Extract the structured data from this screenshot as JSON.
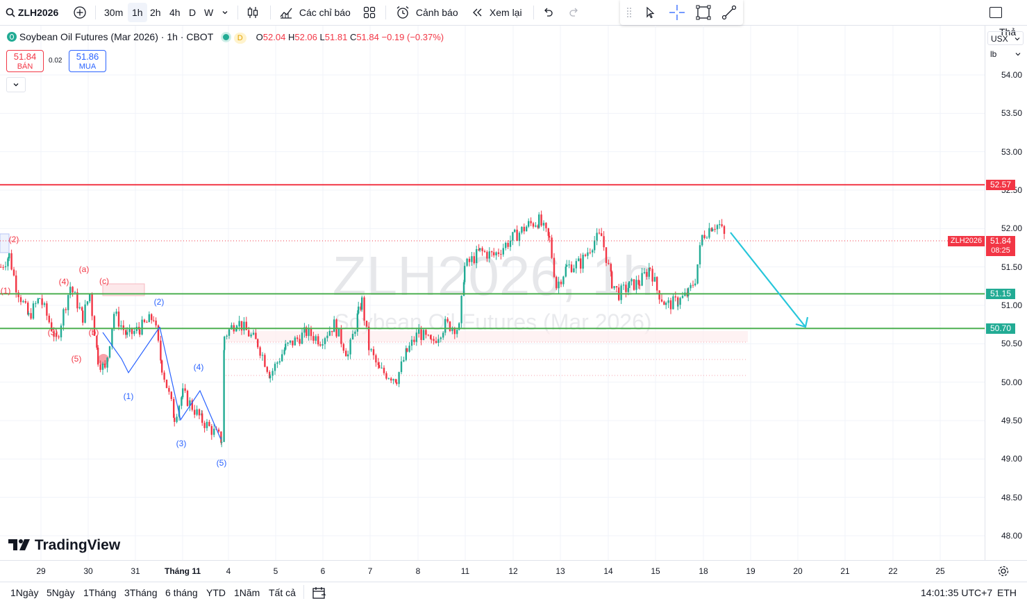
{
  "toolbar": {
    "symbol": "ZLH2026",
    "intervals": [
      "30m",
      "1h",
      "2h",
      "4h",
      "D",
      "W"
    ],
    "selected_interval": "1h",
    "indicators_label": "Các chỉ báo",
    "alerts_label": "Cảnh báo",
    "replay_label": "Xem lại",
    "right_label": "Thả"
  },
  "legend": {
    "title": "Soybean Oil Futures (Mar 2026)",
    "interval": "1h",
    "exchange": "CBOT",
    "flag": "D",
    "open_label": "O",
    "open": "52.04",
    "high_label": "H",
    "high": "52.06",
    "low_label": "L",
    "low": "51.81",
    "close_label": "C",
    "close": "51.84",
    "change": "−0.19 (−0.37%)"
  },
  "trade": {
    "sell_price": "51.84",
    "sell_label": "BÁN",
    "spread": "0.02",
    "buy_price": "51.86",
    "buy_label": "MUA"
  },
  "watermark": {
    "symbol": "ZLH2026, 1h",
    "name": "Soybean Oil Futures (Mar 2026)"
  },
  "price_axis": {
    "currency": "USX",
    "unit": "lb",
    "ticks": [
      "54.00",
      "53.50",
      "53.00",
      "52.50",
      "52.00",
      "51.50",
      "51.00",
      "50.50",
      "50.00",
      "49.50",
      "49.00",
      "48.50",
      "48.00"
    ],
    "level_tags": [
      {
        "value": "52.57",
        "color": "#f23645"
      },
      {
        "value": "51.15",
        "color": "#22ab94"
      },
      {
        "value": "50.70",
        "color": "#22ab94"
      }
    ],
    "current_symbol": "ZLH2026",
    "current_price": "51.84",
    "countdown": "08:25"
  },
  "time_axis": {
    "labels": [
      "29",
      "30",
      "31",
      "Tháng 11",
      "4",
      "5",
      "6",
      "7",
      "8",
      "11",
      "12",
      "13",
      "14",
      "15",
      "18",
      "19",
      "20",
      "21",
      "22",
      "25"
    ]
  },
  "bottom": {
    "ranges": [
      "1Ngày",
      "5Ngày",
      "1Tháng",
      "3Tháng",
      "6 tháng",
      "YTD",
      "1Năm",
      "Tất cả"
    ],
    "clock": "14:01:35 UTC+7",
    "session": "ETH"
  },
  "logo_text": "TradingView",
  "colors": {
    "up": "#22ab94",
    "down": "#f23645",
    "resistance": "#f23645",
    "support": "#4caf50",
    "arrow": "#26c6da",
    "wave_red": "#f23645",
    "wave_blue": "#2962ff"
  },
  "chart_data": {
    "type": "candlestick",
    "symbol": "ZLH2026",
    "interval": "1h",
    "ylim": [
      47.8,
      54.25
    ],
    "x_labels": [
      "29",
      "30",
      "31",
      "Tháng 11",
      "4",
      "5",
      "6",
      "7",
      "8",
      "11",
      "12",
      "13",
      "14",
      "15",
      "18",
      "19",
      "20",
      "21",
      "22",
      "25"
    ],
    "price_path": [
      [
        "Oct 29",
        51.5
      ],
      [
        "Oct 29",
        51.65
      ],
      [
        "Oct 29",
        51.25
      ],
      [
        "Oct 29",
        50.85
      ],
      [
        "Oct 29",
        51.1
      ],
      [
        "Oct 29",
        50.55
      ],
      [
        "Oct 30",
        51.25
      ],
      [
        "Oct 30",
        50.85
      ],
      [
        "Oct 30",
        51.15
      ],
      [
        "Oct 30",
        50.3
      ],
      [
        "Oct 31",
        50.15
      ],
      [
        "Oct 31",
        50.9
      ],
      [
        "Oct 31",
        50.6
      ],
      [
        "Oct 31",
        50.7
      ],
      [
        "Oct 31",
        50.85
      ],
      [
        "Oct 31",
        50.2
      ],
      [
        "Nov 1",
        49.55
      ],
      [
        "Nov 1",
        49.85
      ],
      [
        "Nov 1",
        49.5
      ],
      [
        "Nov 1",
        49.25
      ],
      [
        "Nov 4",
        50.6
      ],
      [
        "Nov 4",
        50.8
      ],
      [
        "Nov 4",
        50.5
      ],
      [
        "Nov 5",
        50.1
      ],
      [
        "Nov 5",
        50.45
      ],
      [
        "Nov 5",
        50.65
      ],
      [
        "Nov 6",
        50.55
      ],
      [
        "Nov 6",
        50.75
      ],
      [
        "Nov 6",
        50.35
      ],
      [
        "Nov 6",
        50.9
      ],
      [
        "Nov 7",
        51.05
      ],
      [
        "Nov 7",
        50.45
      ],
      [
        "Nov 7",
        50.15
      ],
      [
        "Nov 7",
        50.05
      ],
      [
        "Nov 8",
        50.4
      ],
      [
        "Nov 8",
        50.65
      ],
      [
        "Nov 8",
        50.5
      ],
      [
        "Nov 8",
        50.75
      ],
      [
        "Nov 11",
        50.7
      ],
      [
        "Nov 11",
        51.5
      ],
      [
        "Nov 11",
        51.7
      ],
      [
        "Nov 11",
        51.65
      ],
      [
        "Nov 12",
        51.9
      ],
      [
        "Nov 12",
        52.05
      ],
      [
        "Nov 12",
        52.1
      ],
      [
        "Nov 12",
        51.85
      ],
      [
        "Nov 13",
        51.25
      ],
      [
        "Nov 13",
        51.5
      ],
      [
        "Nov 13",
        51.55
      ],
      [
        "Nov 13",
        51.85
      ],
      [
        "Nov 13",
        51.9
      ],
      [
        "Nov 14",
        51.3
      ],
      [
        "Nov 14",
        51.15
      ],
      [
        "Nov 14",
        51.25
      ],
      [
        "Nov 14",
        51.3
      ],
      [
        "Nov 14",
        51.5
      ],
      [
        "Nov 15",
        51.2
      ],
      [
        "Nov 15",
        51.0
      ],
      [
        "Nov 15",
        51.05
      ],
      [
        "Nov 15",
        51.15
      ],
      [
        "Nov 15",
        51.35
      ],
      [
        "Nov 18",
        51.9
      ],
      [
        "Nov 18",
        52.05
      ],
      [
        "Nov 18",
        52.04
      ],
      [
        "Nov 18",
        51.84
      ]
    ],
    "horizontal_levels": [
      {
        "value": 52.57,
        "label": "52.57",
        "color": "#f23645"
      },
      {
        "value": 51.15,
        "label": "51.15",
        "color": "#4caf50"
      },
      {
        "value": 50.7,
        "label": "50.70",
        "color": "#4caf50"
      }
    ],
    "current_price": 51.84,
    "forecast_arrow": {
      "from": [
        "Nov 18",
        51.95
      ],
      "to": [
        "Nov 20",
        50.7
      ]
    },
    "wave_labels_red": [
      "(1)",
      "(2)",
      "(3)",
      "(4)",
      "(5)",
      "(a)",
      "(b)",
      "(c)"
    ],
    "wave_labels_blue": [
      "(1)",
      "(2)",
      "(3)",
      "(4)",
      "(5)"
    ]
  }
}
